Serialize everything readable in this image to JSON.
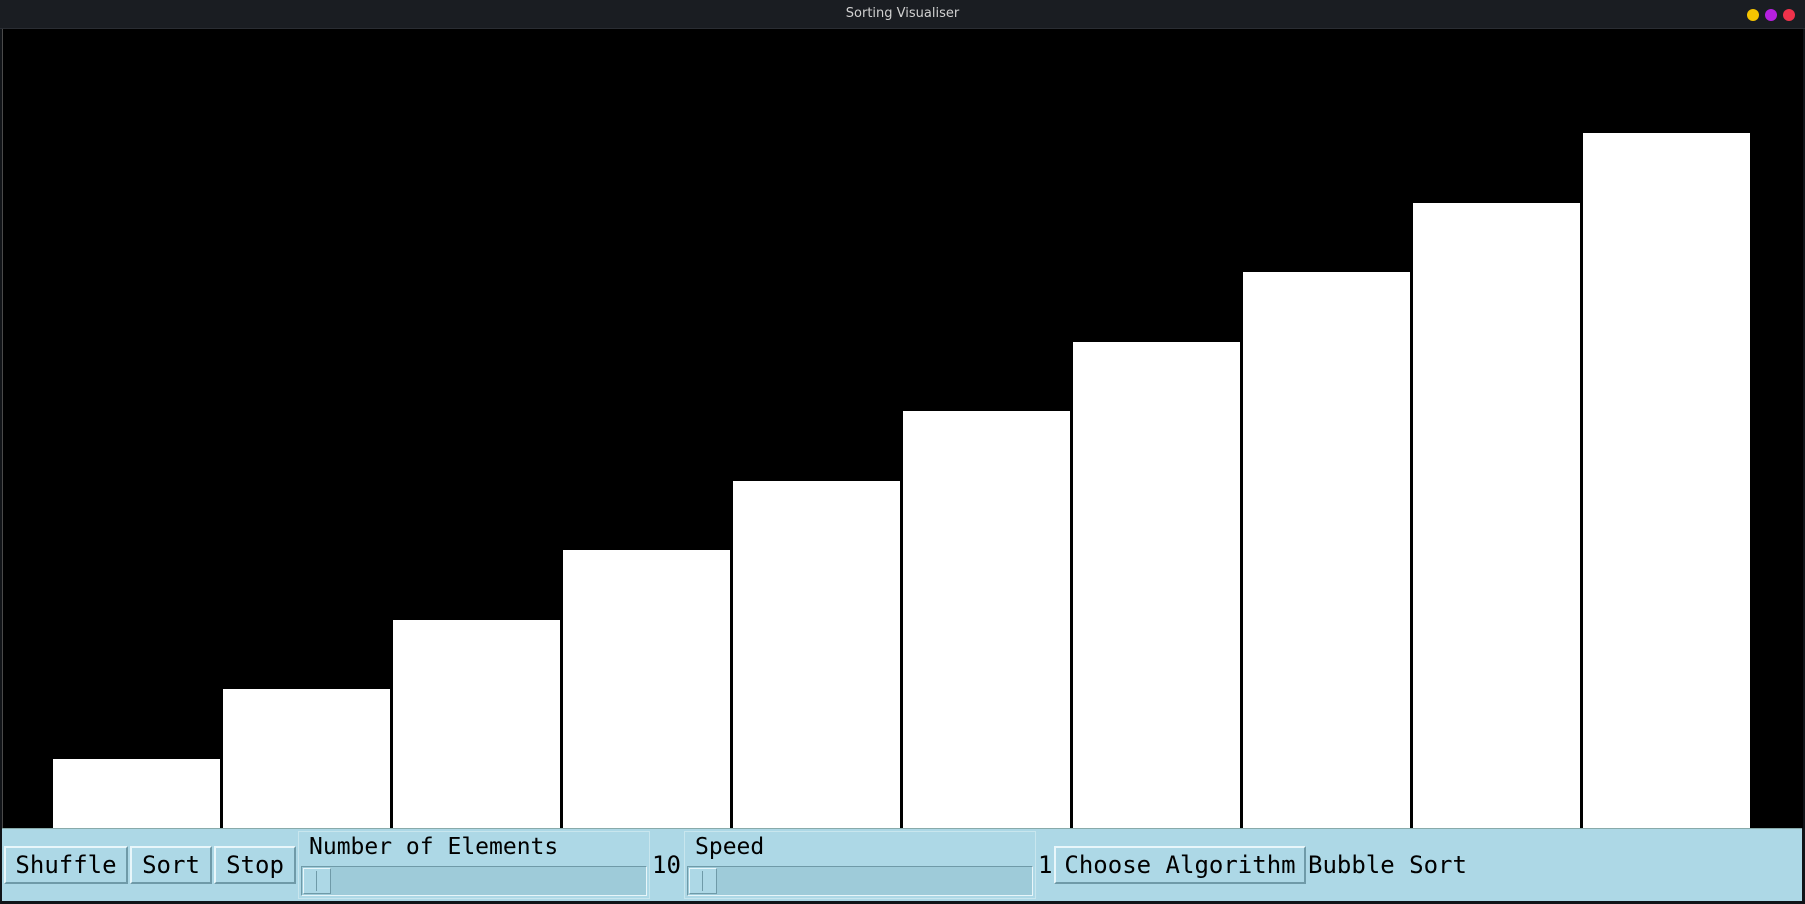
{
  "window": {
    "title": "Sorting Visualiser",
    "controls": [
      {
        "name": "minimize",
        "color": "#f5c400"
      },
      {
        "name": "maximize",
        "color": "#b620e0"
      },
      {
        "name": "close",
        "color": "#f0324b"
      }
    ]
  },
  "chart_data": {
    "type": "bar",
    "values": [
      1,
      2,
      3,
      4,
      5,
      6,
      7,
      8,
      9,
      10
    ],
    "ylim": [
      0,
      11.5
    ],
    "bar_color": "#ffffff",
    "background": "#000000"
  },
  "toolbar": {
    "shuffle_label": "Shuffle",
    "sort_label": "Sort",
    "stop_label": "Stop",
    "elements_label": "Number of Elements",
    "elements_value": "10",
    "speed_label": "Speed",
    "speed_value": "1",
    "choose_algorithm_label": "Choose Algorithm",
    "selected_algorithm": "Bubble Sort",
    "background": "#add8e6"
  }
}
